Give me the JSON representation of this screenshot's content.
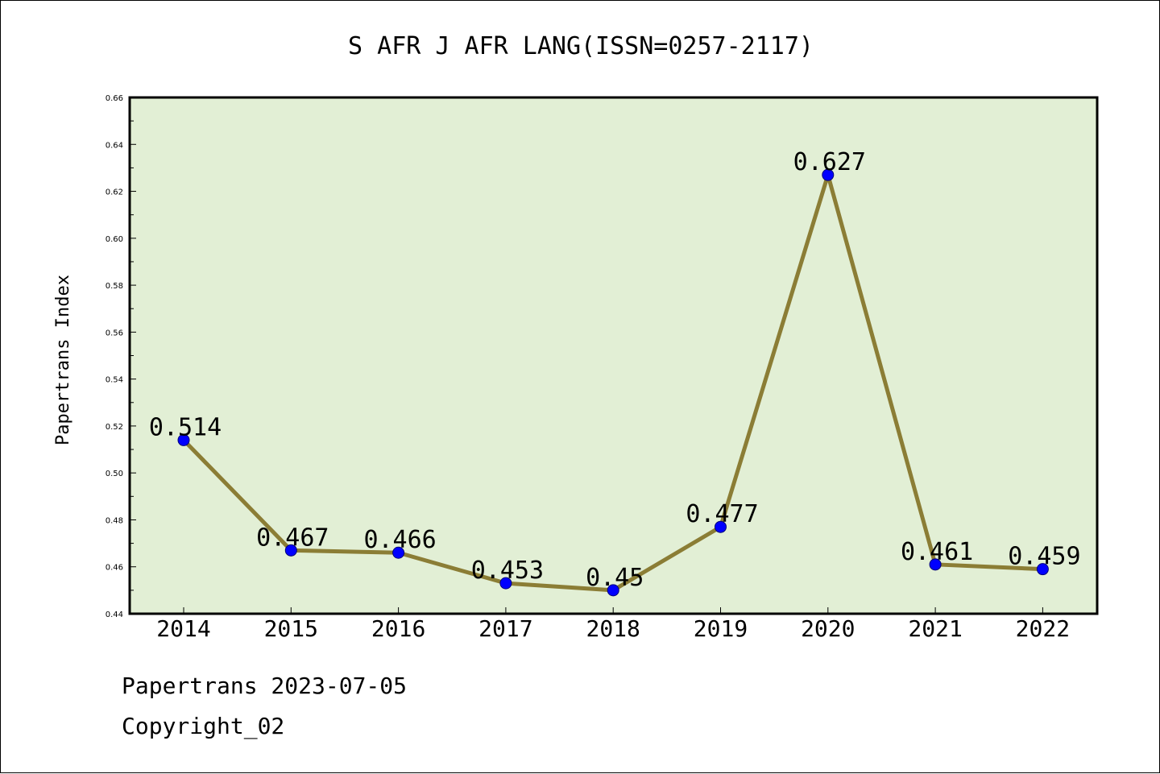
{
  "chart_data": {
    "type": "line",
    "title": "S AFR J AFR LANG(ISSN=0257-2117)",
    "xlabel": "",
    "ylabel": "Papertrans Index",
    "categories": [
      "2014",
      "2015",
      "2016",
      "2017",
      "2018",
      "2019",
      "2020",
      "2021",
      "2022"
    ],
    "values": [
      0.514,
      0.467,
      0.466,
      0.453,
      0.45,
      0.477,
      0.627,
      0.461,
      0.459
    ],
    "data_labels": [
      "0.514",
      "0.467",
      "0.466",
      "0.453",
      "0.45",
      "0.477",
      "0.627",
      "0.461",
      "0.459"
    ],
    "ylim": [
      0.44,
      0.66
    ],
    "yticks": [
      0.44,
      0.46,
      0.48,
      0.5,
      0.52,
      0.54,
      0.56,
      0.58,
      0.6,
      0.62,
      0.64,
      0.66
    ],
    "ytick_labels": [
      "0.44",
      "0.46",
      "0.48",
      "0.50",
      "0.52",
      "0.54",
      "0.56",
      "0.58",
      "0.60",
      "0.62",
      "0.64",
      "0.66"
    ],
    "grid": false,
    "colors": {
      "plot_background": "#e2efd5",
      "line": "#8b7d35",
      "marker": "#0000ff"
    }
  },
  "footer": {
    "line1": "Papertrans 2023-07-05",
    "line2": "Copyright_02"
  }
}
